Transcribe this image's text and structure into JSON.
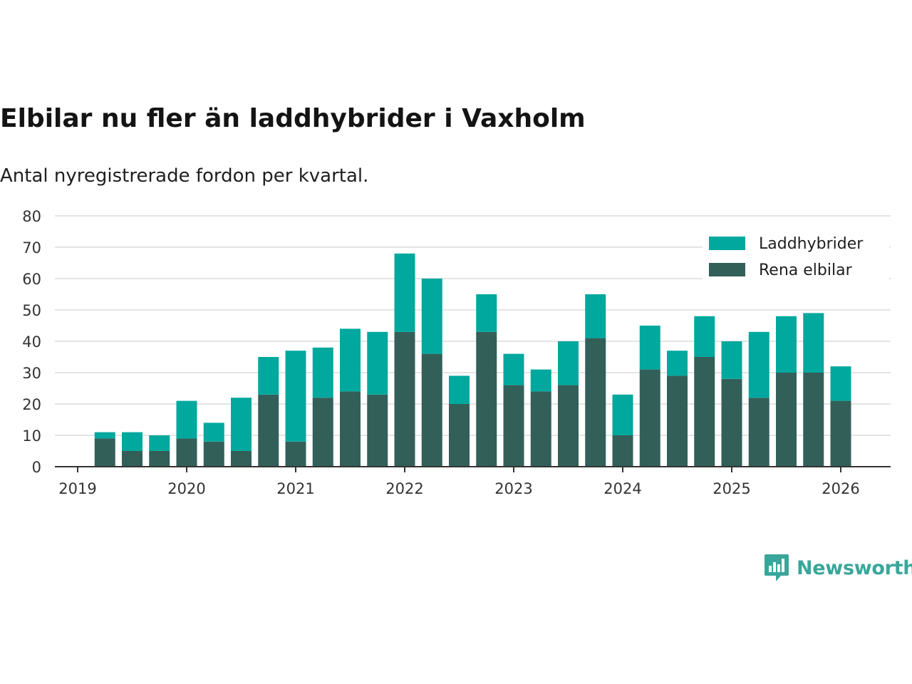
{
  "chart_data": {
    "type": "bar",
    "stacked": true,
    "title": "Elbilar nu fler än laddhybrider i Vaxholm",
    "subtitle": "Antal nyregistrerade fordon per kvartal.",
    "xlabel": "",
    "ylabel": "",
    "ylim": [
      0,
      80
    ],
    "yticks": [
      "0",
      "10",
      "20",
      "30",
      "40",
      "50",
      "60",
      "70",
      "80"
    ],
    "xticks": [
      "2019",
      "2020",
      "2021",
      "2022",
      "2023",
      "2024",
      "2025",
      "2026"
    ],
    "xrange": [
      2019.0,
      2026.5
    ],
    "x": [
      2019.25,
      2019.5,
      2019.75,
      2020.0,
      2020.25,
      2020.5,
      2020.75,
      2021.0,
      2021.25,
      2021.5,
      2021.75,
      2022.0,
      2022.25,
      2022.5,
      2022.75,
      2023.0,
      2023.25,
      2023.5,
      2023.75,
      2024.0,
      2024.25,
      2024.5,
      2024.75,
      2025.0,
      2025.25,
      2025.5,
      2025.75,
      2026.0
    ],
    "legend_position": "top-right",
    "series": [
      {
        "name": "Rena elbilar",
        "color": "#335f59",
        "values": [
          9,
          5,
          5,
          9,
          8,
          5,
          23,
          8,
          22,
          24,
          23,
          43,
          36,
          20,
          43,
          26,
          24,
          26,
          41,
          10,
          31,
          29,
          35,
          28,
          22,
          30,
          30,
          21
        ]
      },
      {
        "name": "Laddhybrider",
        "color": "#00a89d",
        "values": [
          2,
          6,
          5,
          12,
          6,
          17,
          12,
          29,
          16,
          20,
          20,
          25,
          24,
          9,
          12,
          10,
          7,
          14,
          14,
          13,
          14,
          8,
          13,
          12,
          21,
          18,
          19,
          11
        ]
      }
    ],
    "legend": [
      "Laddhybrider",
      "Rena elbilar"
    ]
  },
  "branding": {
    "name": "Newsworthy",
    "icon": "newsworthy-logo-icon",
    "color": "#3aa69a"
  }
}
